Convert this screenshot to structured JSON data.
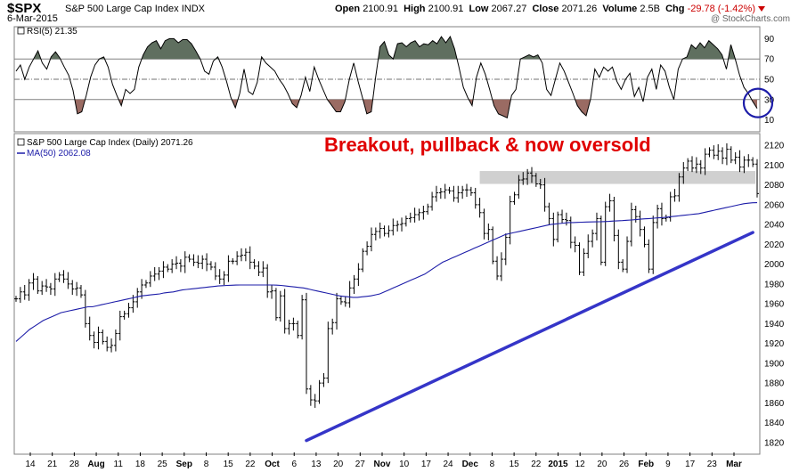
{
  "header": {
    "symbol": "$SPX",
    "long_name": "S&P 500 Large Cap Index",
    "exchange": "INDX",
    "date": "6-Mar-2015",
    "open_label": "Open",
    "open": "2100.91",
    "high_label": "High",
    "high": "2100.91",
    "low_label": "Low",
    "low": "2067.27",
    "close_label": "Close",
    "close": "2071.26",
    "volume_label": "Volume",
    "volume": "2.5B",
    "chg_label": "Chg",
    "chg": "-29.78 (-1.42%)",
    "watermark": "@ StockCharts.com"
  },
  "colors": {
    "price_bars": "#000000",
    "ma": "#1c1ca8",
    "trendline": "#3535c8",
    "resistance_band": "#c8c8c8",
    "rsi_overbought_fill": "#5f6f5f",
    "rsi_oversold_fill": "#9a6b63",
    "annotation": "#e00000",
    "circle": "#1c1ca8"
  },
  "chart_data": [
    {
      "type": "line",
      "name": "RSI panel",
      "legend": "RSI(5) 21.35",
      "ylim": [
        0,
        100
      ],
      "yticks": [
        10,
        30,
        50,
        70,
        90
      ],
      "reference_lines": [
        30,
        50,
        70
      ],
      "overbought": 70,
      "oversold": 30,
      "values": [
        58,
        64,
        50,
        62,
        70,
        78,
        66,
        60,
        72,
        77,
        71,
        62,
        54,
        39,
        16,
        18,
        34,
        52,
        64,
        70,
        72,
        62,
        45,
        34,
        24,
        40,
        36,
        40,
        62,
        74,
        82,
        86,
        88,
        80,
        88,
        90,
        90,
        86,
        89,
        89,
        85,
        78,
        70,
        58,
        55,
        68,
        72,
        62,
        48,
        32,
        22,
        36,
        60,
        38,
        35,
        47,
        72,
        66,
        62,
        58,
        50,
        44,
        36,
        26,
        22,
        34,
        52,
        38,
        62,
        50,
        40,
        30,
        24,
        18,
        18,
        28,
        50,
        66,
        48,
        32,
        16,
        18,
        52,
        82,
        87,
        74,
        70,
        85,
        86,
        82,
        86,
        88,
        82,
        85,
        84,
        88,
        85,
        92,
        86,
        92,
        80,
        62,
        42,
        32,
        24,
        52,
        66,
        55,
        40,
        24,
        16,
        14,
        12,
        34,
        40,
        70,
        72,
        74,
        72,
        74,
        66,
        40,
        34,
        50,
        66,
        58,
        47,
        36,
        24,
        18,
        14,
        30,
        60,
        52,
        62,
        58,
        62,
        48,
        40,
        50,
        56,
        33,
        42,
        28,
        52,
        60,
        40,
        64,
        58,
        42,
        30,
        60,
        70,
        72,
        84,
        80,
        86,
        81,
        88,
        84,
        80,
        74,
        60,
        84,
        70,
        54,
        42,
        36,
        28,
        21.35
      ],
      "highlight_circle_at_end": true
    },
    {
      "type": "ohlc",
      "name": "Price panel",
      "legend": "S&P 500 Large Cap Index (Daily) 2071.26",
      "ma_legend": "MA(50) 2062.08",
      "ylim": [
        1810,
        2130
      ],
      "yticks": [
        1820,
        1840,
        1860,
        1880,
        1900,
        1920,
        1940,
        1960,
        1980,
        2000,
        2020,
        2040,
        2060,
        2080,
        2100,
        2120
      ],
      "xticks": [
        "14",
        "21",
        "28",
        "Aug",
        "11",
        "18",
        "25",
        "Sep",
        "8",
        "15",
        "22",
        "Oct",
        "6",
        "13",
        "20",
        "27",
        "Nov",
        "10",
        "17",
        "24",
        "Dec",
        "8",
        "15",
        "22",
        "2015",
        "12",
        "20",
        "26",
        "Feb",
        "9",
        "17",
        "23",
        "Mar"
      ],
      "closes": [
        1965,
        1972,
        1969,
        1981,
        1985,
        1973,
        1978,
        1977,
        1975,
        1985,
        1989,
        1985,
        1980,
        1975,
        1976,
        1969,
        1940,
        1928,
        1921,
        1931,
        1922,
        1916,
        1918,
        1930,
        1947,
        1950,
        1956,
        1962,
        1972,
        1979,
        1981,
        1988,
        1990,
        1993,
        1997,
        1995,
        2000,
        2001,
        1998,
        2007,
        2005,
        2002,
        2001,
        2005,
        2000,
        1997,
        1988,
        1985,
        1989,
        2003,
        2003,
        2008,
        2009,
        2012,
        2002,
        1998,
        1992,
        1996,
        1972,
        1973,
        1946,
        1968,
        1935,
        1940,
        1940,
        1928,
        1964,
        1874,
        1863,
        1862,
        1880,
        1885,
        1935,
        1941,
        1965,
        1962,
        1961,
        1976,
        1985,
        1995,
        2013,
        2018,
        2030,
        2033,
        2036,
        2031,
        2034,
        2039,
        2040,
        2041,
        2046,
        2047,
        2050,
        2052,
        2053,
        2058,
        2068,
        2072,
        2073,
        2075,
        2074,
        2067,
        2072,
        2075,
        2075,
        2072,
        2060,
        2052,
        2031,
        2035,
        2003,
        1988,
        2005,
        2027,
        2063,
        2070,
        2085,
        2086,
        2092,
        2089,
        2081,
        2080,
        2058,
        2046,
        2025,
        2050,
        2045,
        2044,
        2022,
        2019,
        1992,
        2011,
        2023,
        2031,
        2046,
        2002,
        2058,
        2064,
        2029,
        2002,
        1995,
        2023,
        2055,
        2048,
        2035,
        2020,
        1995,
        2042,
        2056,
        2046,
        2047,
        2068,
        2069,
        2088,
        2097,
        2104,
        2097,
        2101,
        2097,
        2111,
        2115,
        2110,
        2114,
        2107,
        2116,
        2105,
        2108,
        2098,
        2105,
        2105,
        2101,
        2071.26
      ],
      "ma50": [
        1922,
        1926,
        1930,
        1934,
        1937,
        1940,
        1943,
        1945,
        1947,
        1949,
        1951,
        1952,
        1953,
        1954,
        1955,
        1956,
        1957,
        1957,
        1958,
        1959,
        1960,
        1961,
        1962,
        1963,
        1964,
        1965,
        1966,
        1967,
        1968,
        1968.5,
        1969,
        1969.5,
        1970,
        1971,
        1971.5,
        1972,
        1973,
        1974,
        1974.5,
        1975,
        1975.5,
        1976,
        1976.5,
        1977,
        1977.5,
        1978,
        1978.3,
        1978.5,
        1978.7,
        1978.9,
        1979,
        1979,
        1979,
        1979,
        1979,
        1979,
        1979,
        1979,
        1978.8,
        1978.5,
        1978,
        1977.5,
        1977,
        1976.5,
        1976,
        1975,
        1974,
        1973,
        1972,
        1971,
        1970,
        1969,
        1968,
        1967.5,
        1967,
        1966.5,
        1966.5,
        1967,
        1967.5,
        1968,
        1969,
        1970,
        1972,
        1974,
        1976,
        1978,
        1980,
        1982,
        1984,
        1986,
        1988,
        1990,
        1993,
        1996,
        1999,
        2002,
        2004,
        2006,
        2008,
        2010,
        2012,
        2014,
        2016,
        2018,
        2020,
        2022,
        2024,
        2026,
        2028,
        2030,
        2031,
        2032,
        2033,
        2034,
        2035,
        2036,
        2037,
        2038,
        2039,
        2040,
        2040.5,
        2041,
        2041.5,
        2042,
        2042,
        2042.2,
        2042.4,
        2042.5,
        2042.6,
        2042.7,
        2042.8,
        2043,
        2043.2,
        2043.5,
        2043.8,
        2044,
        2044.3,
        2044.6,
        2045,
        2045.4,
        2045.8,
        2046,
        2046.4,
        2046.8,
        2047,
        2047.5,
        2048,
        2048.5,
        2049,
        2049.5,
        2050,
        2050.5,
        2051,
        2052,
        2053,
        2054,
        2055,
        2056,
        2057,
        2058,
        2059,
        2060,
        2061,
        2061.5,
        2062,
        2062.08
      ],
      "trendline": {
        "start": {
          "x_index": 67,
          "y": 1822
        },
        "end": {
          "x_index": 170,
          "y": 2032
        }
      },
      "resistance_band": {
        "from_index": 107,
        "to_index": 170,
        "y_low": 2081,
        "y_high": 2094
      },
      "annotation": "Breakout, pullback & now oversold"
    }
  ]
}
